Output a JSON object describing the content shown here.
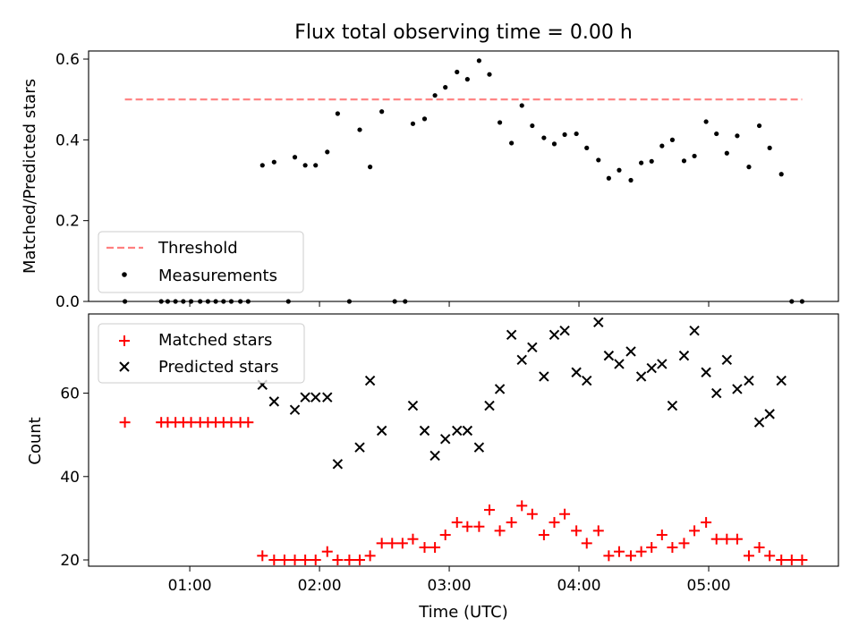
{
  "chart_data": [
    {
      "type": "scatter",
      "title": "Flux total observing time = 0.00 h",
      "xlabel": "",
      "ylabel": "Matched/Predicted stars",
      "xlim": [
        0.22,
        6.0
      ],
      "ylim": [
        0,
        0.62
      ],
      "yticks": [
        0.0,
        0.2,
        0.4,
        0.6
      ],
      "ytick_labels": [
        "0.0",
        "0.2",
        "0.4",
        "0.6"
      ],
      "threshold": {
        "name": "Threshold",
        "value": 0.5,
        "x": [
          0.5,
          5.72
        ],
        "color": "#ff7f7f"
      },
      "series": [
        {
          "name": "Measurements",
          "color": "#000000",
          "x": [
            0.5,
            0.78,
            0.83,
            0.89,
            0.95,
            1.01,
            1.08,
            1.14,
            1.2,
            1.26,
            1.32,
            1.39,
            1.45,
            1.56,
            1.65,
            1.76,
            1.81,
            1.89,
            1.97,
            2.06,
            2.14,
            2.23,
            2.31,
            2.39,
            2.48,
            2.58,
            2.66,
            2.72,
            2.81,
            2.89,
            2.97,
            3.06,
            3.14,
            3.23,
            3.31,
            3.39,
            3.48,
            3.56,
            3.64,
            3.73,
            3.81,
            3.89,
            3.98,
            4.06,
            4.15,
            4.23,
            4.31,
            4.4,
            4.48,
            4.56,
            4.64,
            4.72,
            4.81,
            4.89,
            4.98,
            5.06,
            5.14,
            5.22,
            5.31,
            5.39,
            5.47,
            5.56,
            5.64,
            5.72
          ],
          "y": [
            0.0,
            0.0,
            0.0,
            0.0,
            0.0,
            0.0,
            0.0,
            0.0,
            0.0,
            0.0,
            0.0,
            0.0,
            0.0,
            0.337,
            0.345,
            0.0,
            0.357,
            0.337,
            0.337,
            0.37,
            0.465,
            0.0,
            0.425,
            0.333,
            0.47,
            0.0,
            0.0,
            0.44,
            0.452,
            0.51,
            0.53,
            0.568,
            0.55,
            0.596,
            0.562,
            0.443,
            0.392,
            0.485,
            0.435,
            0.405,
            0.39,
            0.413,
            0.415,
            0.38,
            0.35,
            0.305,
            0.325,
            0.3,
            0.343,
            0.347,
            0.385,
            0.4,
            0.348,
            0.36,
            0.445,
            0.415,
            0.367,
            0.41,
            0.333,
            0.435,
            0.38,
            0.315,
            0.0,
            0.0
          ]
        }
      ],
      "legend": [
        "Threshold",
        "Measurements"
      ],
      "legend_position": "lower-left"
    },
    {
      "type": "scatter",
      "title": "",
      "xlabel": "Time (UTC)",
      "ylabel": "Count",
      "xlim": [
        0.22,
        6.0
      ],
      "ylim": [
        18.5,
        79
      ],
      "yticks": [
        20,
        40,
        60
      ],
      "ytick_labels": [
        "20",
        "40",
        "60"
      ],
      "xticks": [
        1,
        2,
        3,
        4,
        5
      ],
      "xtick_labels": [
        "01:00",
        "02:00",
        "03:00",
        "04:00",
        "05:00"
      ],
      "series": [
        {
          "name": "Matched stars",
          "marker": "+",
          "color": "#ff0000",
          "x": [
            0.5,
            0.78,
            0.83,
            0.89,
            0.95,
            1.01,
            1.08,
            1.14,
            1.2,
            1.26,
            1.32,
            1.39,
            1.45,
            1.56,
            1.65,
            1.73,
            1.81,
            1.89,
            1.97,
            2.06,
            2.14,
            2.23,
            2.31,
            2.39,
            2.48,
            2.56,
            2.64,
            2.72,
            2.81,
            2.89,
            2.97,
            3.06,
            3.14,
            3.23,
            3.31,
            3.39,
            3.48,
            3.56,
            3.64,
            3.73,
            3.81,
            3.89,
            3.98,
            4.06,
            4.15,
            4.23,
            4.31,
            4.4,
            4.48,
            4.56,
            4.64,
            4.72,
            4.81,
            4.89,
            4.98,
            5.06,
            5.14,
            5.22,
            5.31,
            5.39,
            5.47,
            5.56,
            5.64,
            5.72
          ],
          "y": [
            53,
            53,
            53,
            53,
            53,
            53,
            53,
            53,
            53,
            53,
            53,
            53,
            53,
            21,
            20,
            20,
            20,
            20,
            20,
            22,
            20,
            20,
            20,
            21,
            24,
            24,
            24,
            25,
            23,
            23,
            26,
            29,
            28,
            28,
            32,
            27,
            29,
            33,
            31,
            26,
            29,
            31,
            27,
            24,
            27,
            21,
            22,
            21,
            22,
            23,
            26,
            23,
            24,
            27,
            29,
            25,
            25,
            25,
            21,
            23,
            21,
            20,
            20,
            20
          ]
        },
        {
          "name": "Predicted stars",
          "marker": "x",
          "color": "#000000",
          "x": [
            1.56,
            1.65,
            1.81,
            1.89,
            1.97,
            2.06,
            2.14,
            2.31,
            2.39,
            2.48,
            2.72,
            2.81,
            2.89,
            2.97,
            3.06,
            3.14,
            3.23,
            3.31,
            3.39,
            3.48,
            3.56,
            3.64,
            3.73,
            3.81,
            3.89,
            3.98,
            4.06,
            4.15,
            4.23,
            4.31,
            4.4,
            4.48,
            4.56,
            4.64,
            4.72,
            4.81,
            4.89,
            4.98,
            5.06,
            5.14,
            5.22,
            5.31,
            5.39,
            5.47,
            5.56
          ],
          "y": [
            62,
            58,
            56,
            59,
            59,
            59,
            43,
            47,
            63,
            51,
            57,
            51,
            45,
            49,
            51,
            51,
            47,
            57,
            61,
            74,
            68,
            71,
            64,
            74,
            75,
            65,
            63,
            77,
            69,
            67,
            70,
            64,
            66,
            67,
            57,
            69,
            75,
            65,
            60,
            68,
            61,
            63,
            53,
            55,
            63
          ]
        }
      ],
      "legend": [
        "Matched stars",
        "Predicted stars"
      ],
      "legend_position": "upper-left"
    }
  ]
}
